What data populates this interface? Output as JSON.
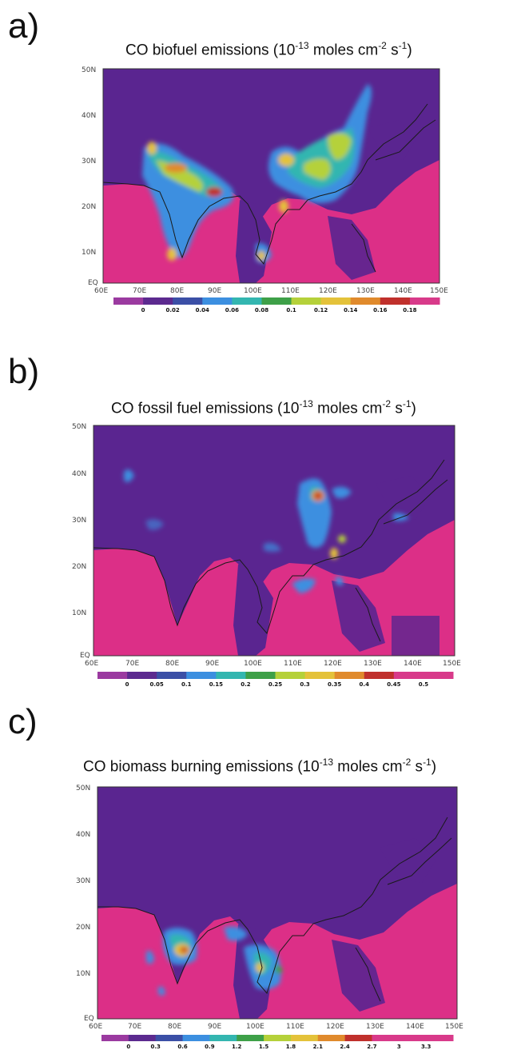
{
  "colors": {
    "background": "#dc2f87",
    "land": "#5a2590",
    "coast": "#1a1a1a",
    "scale": [
      "#9b3aa0",
      "#5c2a8f",
      "#3b4fa6",
      "#3c8fe0",
      "#33b6b0",
      "#3ea048",
      "#b5d13a",
      "#e4c23a",
      "#e08a2c",
      "#c0302c",
      "#d83a8a"
    ]
  },
  "panels": [
    {
      "label": "a)",
      "title_main": "CO biofuel emissions (10",
      "title_exp1": "-13",
      "title_mid": " moles cm",
      "title_exp2": "-2",
      "title_mid2": " s",
      "title_exp3": "-1",
      "title_end": ")",
      "lat_ticks": [
        "50N",
        "40N",
        "30N",
        "20N",
        "10N",
        "EQ"
      ],
      "lon_ticks": [
        "60E",
        "70E",
        "80E",
        "90E",
        "100E",
        "110E",
        "120E",
        "130E",
        "140E",
        "150E"
      ],
      "colorbar_labels": [
        "0",
        "0.02",
        "0.04",
        "0.06",
        "0.08",
        "0.1",
        "0.12",
        "0.14",
        "0.16",
        "0.18"
      ]
    },
    {
      "label": "b)",
      "title_main": "CO fossil fuel emissions (10",
      "title_exp1": "-13",
      "title_mid": " moles cm",
      "title_exp2": "-2",
      "title_mid2": " s",
      "title_exp3": "-1",
      "title_end": ")",
      "lat_ticks": [
        "50N",
        "40N",
        "30N",
        "20N",
        "10N",
        "EQ"
      ],
      "lon_ticks": [
        "60E",
        "70E",
        "80E",
        "90E",
        "100E",
        "110E",
        "120E",
        "130E",
        "140E",
        "150E"
      ],
      "colorbar_labels": [
        "0",
        "0.05",
        "0.1",
        "0.15",
        "0.2",
        "0.25",
        "0.3",
        "0.35",
        "0.4",
        "0.45",
        "0.5"
      ]
    },
    {
      "label": "c)",
      "title_main": "CO biomass burning emissions (10",
      "title_exp1": "-13",
      "title_mid": " moles cm",
      "title_exp2": "-2",
      "title_mid2": " s",
      "title_exp3": "-1",
      "title_end": ")",
      "lat_ticks": [
        "50N",
        "40N",
        "30N",
        "20N",
        "10N",
        "EQ"
      ],
      "lon_ticks": [
        "60E",
        "70E",
        "80E",
        "90E",
        "100E",
        "110E",
        "120E",
        "130E",
        "140E",
        "150E"
      ],
      "colorbar_labels": [
        "0",
        "0.3",
        "0.6",
        "0.9",
        "1.2",
        "1.5",
        "1.8",
        "2.1",
        "2.4",
        "2.7",
        "3",
        "3.3"
      ]
    }
  ]
}
